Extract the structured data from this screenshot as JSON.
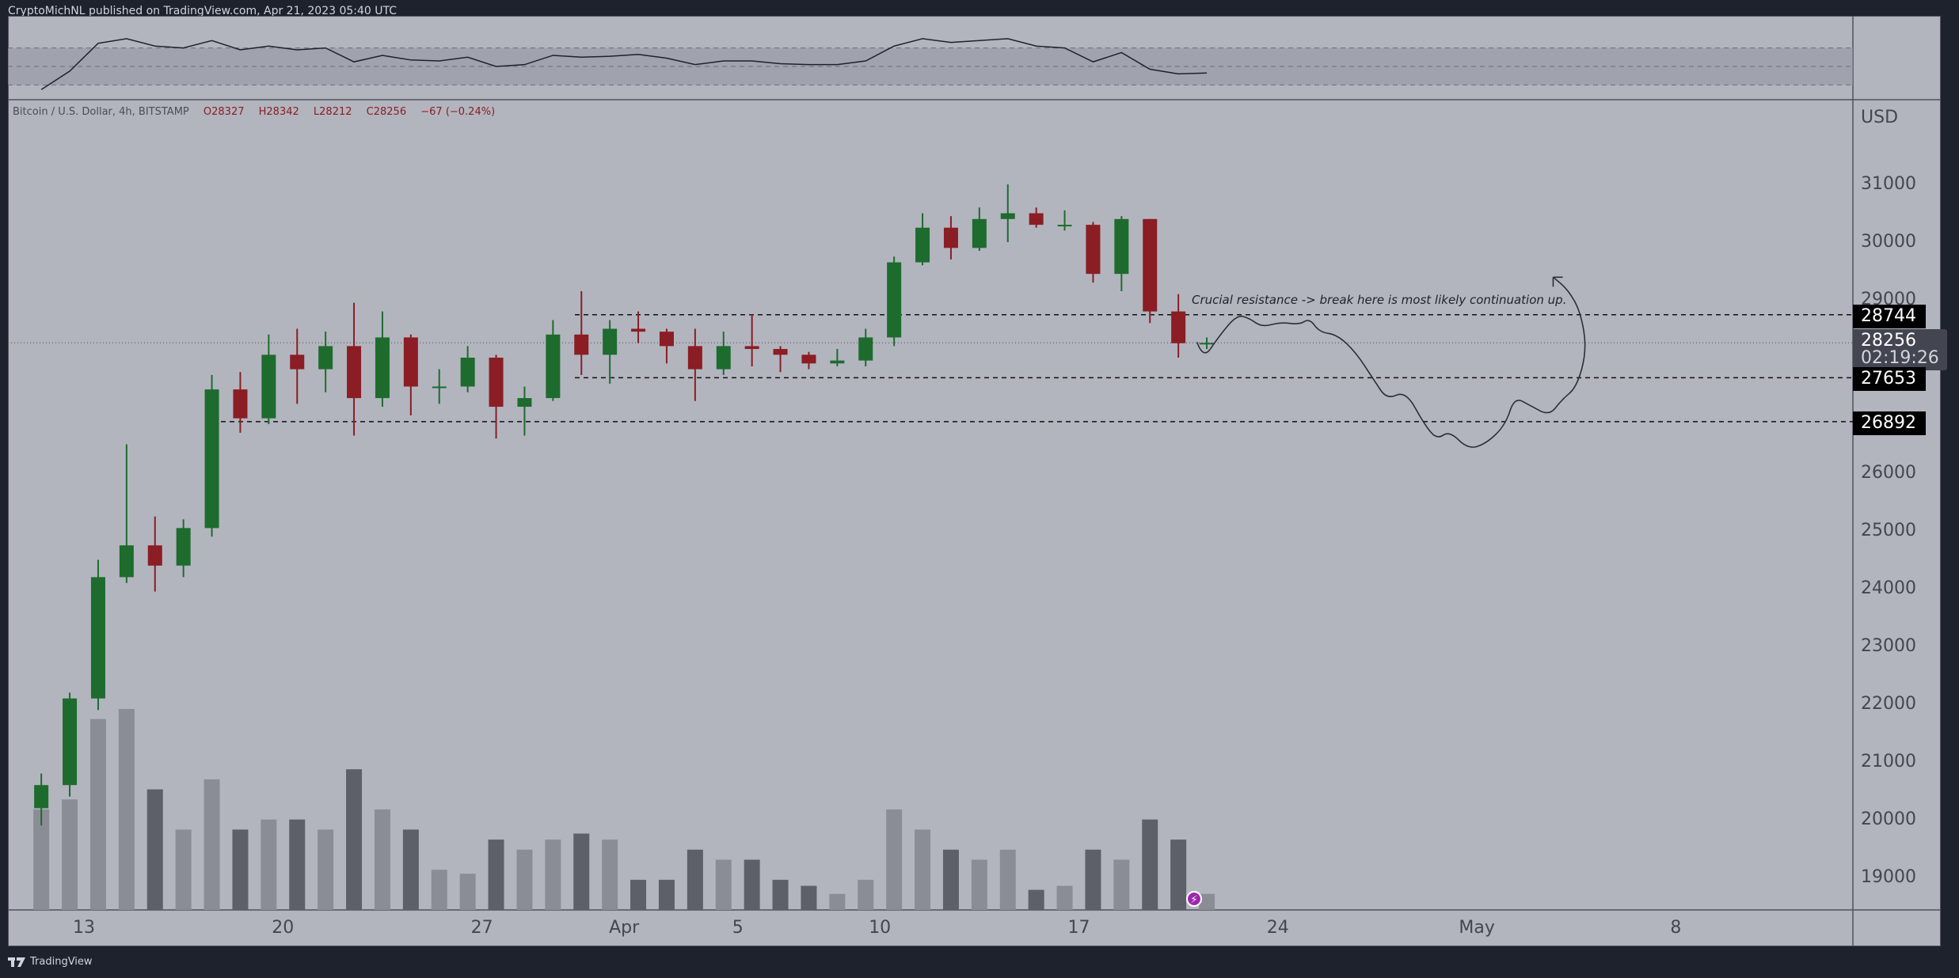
{
  "header": {
    "published": "CryptoMichNL published on TradingView.com, Apr 21, 2023 05:40 UTC"
  },
  "legend": {
    "symbol": "Bitcoin / U.S. Dollar, 4h, BITSTAMP",
    "open": "O28327",
    "high": "H28342",
    "low": "L28212",
    "close": "C28256",
    "change": "−67 (−0.24%)"
  },
  "price_axis": {
    "currency": "USD",
    "ticks": [
      "31000",
      "30000",
      "29000",
      "26000",
      "25000",
      "24000",
      "23000",
      "22000",
      "21000",
      "20000",
      "19000"
    ],
    "tick_values": [
      31000,
      30000,
      29000,
      26000,
      25000,
      24000,
      23000,
      22000,
      21000,
      20000,
      19000
    ]
  },
  "levels": [
    {
      "label": "28744",
      "value": 28744
    },
    {
      "label": "27653",
      "value": 27653
    },
    {
      "label": "26892",
      "value": 26892
    }
  ],
  "current": {
    "price": "28256",
    "value": 28256,
    "countdown": "02:19:26"
  },
  "annotation": "Crucial resistance -> break here is most likely continuation up.",
  "time_axis": {
    "labels": [
      "13",
      "20",
      "27",
      "Apr",
      "5",
      "10",
      "17",
      "24",
      "May",
      "8"
    ],
    "label_days": [
      2,
      9,
      16,
      21,
      25,
      30,
      37,
      44,
      51,
      58
    ]
  },
  "footer": {
    "brand": "TradingView"
  },
  "colors": {
    "up": "#1e6b2e",
    "down": "#8b1d24",
    "background": "#b2b5be",
    "frame": "#1e222d",
    "volume": "#5d6068"
  },
  "chart_data": {
    "type": "candlestick",
    "interval_displayed": "daily (approx. aggregate of 4h)",
    "dates": [
      "Mar 11",
      "Mar 12",
      "Mar 13",
      "Mar 14",
      "Mar 15",
      "Mar 16",
      "Mar 17",
      "Mar 18",
      "Mar 19",
      "Mar 20",
      "Mar 21",
      "Mar 22",
      "Mar 23",
      "Mar 24",
      "Mar 25",
      "Mar 26",
      "Mar 27",
      "Mar 28",
      "Mar 29",
      "Mar 30",
      "Mar 31",
      "Apr 1",
      "Apr 2",
      "Apr 3",
      "Apr 4",
      "Apr 5",
      "Apr 6",
      "Apr 7",
      "Apr 8",
      "Apr 9",
      "Apr 10",
      "Apr 11",
      "Apr 12",
      "Apr 13",
      "Apr 14",
      "Apr 15",
      "Apr 16",
      "Apr 17",
      "Apr 18",
      "Apr 19",
      "Apr 20",
      "Apr 21"
    ],
    "ohlc": [
      [
        20200,
        20800,
        19900,
        20600
      ],
      [
        20600,
        22200,
        20400,
        22100
      ],
      [
        22100,
        24500,
        21900,
        24200
      ],
      [
        24200,
        26500,
        24100,
        24750
      ],
      [
        24750,
        25250,
        23950,
        24400
      ],
      [
        24400,
        25200,
        24200,
        25050
      ],
      [
        25050,
        27700,
        24900,
        27450
      ],
      [
        27450,
        27750,
        26700,
        26950
      ],
      [
        26950,
        28400,
        26850,
        28050
      ],
      [
        28050,
        28500,
        27200,
        27800
      ],
      [
        27800,
        28450,
        27400,
        28200
      ],
      [
        28200,
        28950,
        26650,
        27300
      ],
      [
        27300,
        28800,
        27150,
        28350
      ],
      [
        28350,
        28400,
        27000,
        27500
      ],
      [
        27500,
        27800,
        27200,
        27500
      ],
      [
        27500,
        28200,
        27400,
        28000
      ],
      [
        28000,
        28050,
        26600,
        27150
      ],
      [
        27150,
        27500,
        26650,
        27300
      ],
      [
        27300,
        28650,
        27250,
        28400
      ],
      [
        28400,
        29150,
        27700,
        28050
      ],
      [
        28050,
        28650,
        27550,
        28500
      ],
      [
        28500,
        28800,
        28250,
        28450
      ],
      [
        28450,
        28500,
        27900,
        28200
      ],
      [
        28200,
        28500,
        27250,
        27800
      ],
      [
        27800,
        28450,
        27700,
        28200
      ],
      [
        28200,
        28750,
        27850,
        28150
      ],
      [
        28150,
        28200,
        27750,
        28050
      ],
      [
        28050,
        28100,
        27800,
        27900
      ],
      [
        27900,
        28150,
        27850,
        27950
      ],
      [
        27950,
        28500,
        27850,
        28350
      ],
      [
        28350,
        29750,
        28200,
        29650
      ],
      [
        29650,
        30500,
        29600,
        30250
      ],
      [
        30250,
        30450,
        29700,
        29900
      ],
      [
        29900,
        30600,
        29850,
        30400
      ],
      [
        30400,
        31000,
        30000,
        30500
      ],
      [
        30500,
        30600,
        30250,
        30300
      ],
      [
        30300,
        30550,
        30200,
        30300
      ],
      [
        30300,
        30350,
        29300,
        29450
      ],
      [
        29450,
        30450,
        29150,
        30400
      ],
      [
        30400,
        30400,
        28600,
        28800
      ],
      [
        28800,
        29100,
        28000,
        28250
      ],
      [
        28250,
        28350,
        28150,
        28256
      ]
    ],
    "volume_relative": [
      50,
      55,
      95,
      100,
      60,
      40,
      65,
      40,
      45,
      45,
      40,
      70,
      50,
      40,
      20,
      18,
      35,
      30,
      35,
      38,
      35,
      15,
      15,
      30,
      25,
      25,
      15,
      12,
      8,
      15,
      50,
      40,
      30,
      25,
      30,
      10,
      12,
      30,
      25,
      45,
      35,
      8
    ],
    "rsi": [
      25,
      45,
      75,
      80,
      72,
      70,
      78,
      68,
      72,
      68,
      70,
      55,
      62,
      57,
      56,
      60,
      50,
      52,
      62,
      60,
      61,
      63,
      59,
      52,
      56,
      56,
      53,
      52,
      52,
      56,
      72,
      80,
      76,
      78,
      80,
      72,
      70,
      55,
      65,
      47,
      42,
      43
    ],
    "rsi_bands": [
      70,
      50,
      30
    ],
    "ylim": [
      18500,
      32000
    ],
    "grid": false
  }
}
